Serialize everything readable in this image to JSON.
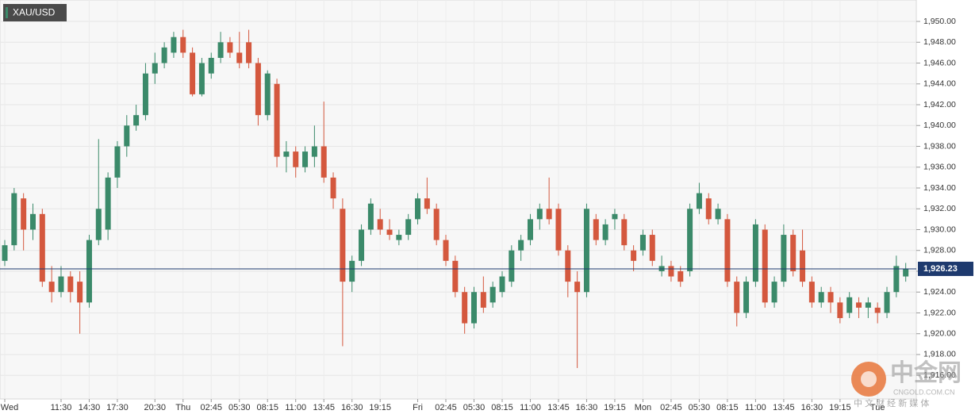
{
  "chart_data": {
    "type": "candlestick",
    "title": "XAU/USD",
    "categories": [
      "Wed",
      null,
      null,
      null,
      null,
      null,
      "11:30",
      null,
      null,
      "14:30",
      null,
      null,
      "17:30",
      null,
      null,
      null,
      "20:30",
      null,
      null,
      "Thu",
      null,
      null,
      "02:45",
      null,
      null,
      "05:30",
      null,
      null,
      "08:15",
      null,
      null,
      "11:00",
      null,
      null,
      "13:45",
      null,
      null,
      "16:30",
      null,
      null,
      "19:15",
      null,
      null,
      null,
      "Fri",
      null,
      null,
      "02:45",
      null,
      null,
      "05:30",
      null,
      null,
      "08:15",
      null,
      null,
      "11:00",
      null,
      null,
      "13:45",
      null,
      null,
      "16:30",
      null,
      null,
      "19:15",
      null,
      null,
      "Mon",
      null,
      null,
      "02:45",
      null,
      null,
      "05:30",
      null,
      null,
      "08:15",
      null,
      null,
      "11:00",
      null,
      null,
      "13:45",
      null,
      null,
      "16:30",
      null,
      null,
      "19:15",
      null,
      null,
      null,
      "Tue",
      null,
      null,
      null
    ],
    "open": [
      1927,
      1928.5,
      1933,
      1930,
      1931.5,
      1925,
      1924,
      1925.5,
      1925,
      1923,
      1929,
      1930,
      1935,
      1938,
      1940,
      1941,
      1945,
      1946,
      1947,
      1948.5,
      1947,
      1943,
      1945,
      1946.5,
      1948,
      1947,
      1948,
      1946,
      1941,
      1944,
      1937,
      1937.5,
      1936,
      1937,
      1938,
      1935,
      1932,
      1925,
      1927,
      1930,
      1931,
      1930,
      1929,
      1929.5,
      1931,
      1933,
      1932,
      1929,
      1927,
      1924,
      1921,
      1924,
      1923,
      1924,
      1925,
      1928,
      1929,
      1931,
      1932,
      1932,
      1928,
      1925,
      1924,
      1931,
      1929,
      1931,
      1931,
      1928,
      1928,
      1929.5,
      1926,
      1926.5,
      1926,
      1926,
      1932,
      1933,
      1931,
      1931,
      1925,
      1922,
      1925,
      1930,
      1923,
      1925,
      1929.5,
      1928,
      1925,
      1923,
      1924,
      1923,
      1922,
      1923,
      1922.5,
      1922.5,
      1922,
      1924,
      1925.5
    ],
    "high": [
      1929,
      1934,
      1933.5,
      1932.5,
      1932,
      1926.5,
      1926.5,
      1926,
      1926,
      1929.5,
      1938.7,
      1935.5,
      1938.5,
      1941,
      1942,
      1946,
      1947,
      1948,
      1949,
      1949.2,
      1947.5,
      1946.5,
      1947,
      1949,
      1948.5,
      1949,
      1949.2,
      1946.5,
      1945.3,
      1944.5,
      1938.5,
      1938,
      1938,
      1940,
      1942.3,
      1935.5,
      1933,
      1927.5,
      1930.5,
      1933,
      1932,
      1931,
      1930,
      1931.5,
      1933.5,
      1935,
      1932.5,
      1929.5,
      1927.5,
      1924.5,
      1924.5,
      1925.5,
      1925,
      1926,
      1928.5,
      1929.5,
      1931.5,
      1932.5,
      1935,
      1932.5,
      1928.5,
      1926,
      1932.5,
      1931.5,
      1931,
      1932,
      1931.5,
      1928.5,
      1930,
      1930,
      1927.5,
      1927,
      1926.5,
      1932.5,
      1934.5,
      1933.5,
      1932.5,
      1931.5,
      1925.5,
      1925.5,
      1931,
      1930.5,
      1925.5,
      1930.5,
      1930,
      1930,
      1925.5,
      1924.5,
      1924.5,
      1923.5,
      1924,
      1923.5,
      1923.5,
      1923,
      1924.5,
      1927.5,
      1926.8
    ],
    "low": [
      1926.5,
      1928,
      1928,
      1929,
      1924.5,
      1923,
      1923.5,
      1923,
      1920,
      1922.5,
      1928.5,
      1929,
      1934,
      1937,
      1939.5,
      1940.5,
      1944,
      1945.5,
      1946.5,
      1946.5,
      1942.8,
      1942.8,
      1944.5,
      1946,
      1946.5,
      1945.5,
      1945.5,
      1940,
      1940.5,
      1936,
      1935.5,
      1935,
      1935.5,
      1936,
      1934.5,
      1932,
      1918.8,
      1924,
      1926.5,
      1929.5,
      1929.5,
      1929,
      1928.5,
      1929,
      1930.5,
      1931.5,
      1928.5,
      1926.5,
      1923.5,
      1920,
      1920.5,
      1922,
      1922.5,
      1923.5,
      1924.5,
      1927,
      1928.5,
      1930,
      1930.5,
      1927.5,
      1923.5,
      1916.7,
      1923.5,
      1928.5,
      1928.5,
      1930,
      1928,
      1926,
      1927.5,
      1926.5,
      1925.5,
      1925,
      1924.5,
      1925.5,
      1931.5,
      1930.5,
      1930.5,
      1924.5,
      1920.7,
      1921.5,
      1924.5,
      1922.5,
      1922.5,
      1924.5,
      1925.5,
      1924.5,
      1922.5,
      1922.5,
      1922,
      1921,
      1921.5,
      1921.5,
      1921.5,
      1921,
      1921.5,
      1923.5,
      1925
    ],
    "close": [
      1928.5,
      1933.5,
      1930,
      1931.5,
      1925,
      1924,
      1925.5,
      1924,
      1923,
      1929,
      1932,
      1935,
      1938,
      1940,
      1941,
      1945,
      1946,
      1947.5,
      1948.5,
      1947,
      1943,
      1946,
      1946.5,
      1948,
      1947,
      1946,
      1946,
      1941,
      1945,
      1937,
      1937.5,
      1936,
      1937.5,
      1938,
      1935,
      1933,
      1925,
      1927,
      1930,
      1932.5,
      1930,
      1929.5,
      1929.5,
      1931,
      1933,
      1932,
      1929,
      1927,
      1924,
      1921,
      1924,
      1922.5,
      1924.5,
      1925.5,
      1928,
      1929,
      1931,
      1932,
      1931,
      1928,
      1925,
      1924,
      1932,
      1929,
      1930.5,
      1931.5,
      1928.5,
      1927,
      1929.5,
      1927,
      1926.5,
      1925.5,
      1925,
      1932,
      1933.5,
      1931,
      1932,
      1925,
      1922,
      1925,
      1930.5,
      1923,
      1925,
      1929.5,
      1926,
      1925,
      1923,
      1924,
      1923,
      1921.5,
      1923.5,
      1922.5,
      1923,
      1922,
      1924,
      1926.5,
      1926.23
    ],
    "up_color": "#3b8a6a",
    "down_color": "#d4583e",
    "ylim": [
      1913.73,
      1952.06
    ],
    "yticks": [
      {
        "value": 1916,
        "label": "1,916.00"
      },
      {
        "value": 1918,
        "label": "1,918.00"
      },
      {
        "value": 1920,
        "label": "1,920.00"
      },
      {
        "value": 1922,
        "label": "1,922.00"
      },
      {
        "value": 1924,
        "label": "1,924.00"
      },
      {
        "value": 1926,
        "label": "1,926.00"
      },
      {
        "value": 1928,
        "label": "1,928.00"
      },
      {
        "value": 1930,
        "label": "1,930.00"
      },
      {
        "value": 1932,
        "label": "1,932.00"
      },
      {
        "value": 1934,
        "label": "1,934.00"
      },
      {
        "value": 1936,
        "label": "1,936.00"
      },
      {
        "value": 1938,
        "label": "1,938.00"
      },
      {
        "value": 1940,
        "label": "1,940.00"
      },
      {
        "value": 1942,
        "label": "1,942.00"
      },
      {
        "value": 1944,
        "label": "1,944.00"
      },
      {
        "value": 1946,
        "label": "1,946.00"
      },
      {
        "value": 1948,
        "label": "1,948.00"
      },
      {
        "value": 1950,
        "label": "1,950.00"
      }
    ],
    "last_price": {
      "value": 1926.23,
      "label": "1,926.23"
    },
    "grid": true,
    "watermark": {
      "brand": "中金网",
      "site": "CNGOLD.COM.CN",
      "slogan": "中 文 财 经 新 媒 体"
    }
  }
}
